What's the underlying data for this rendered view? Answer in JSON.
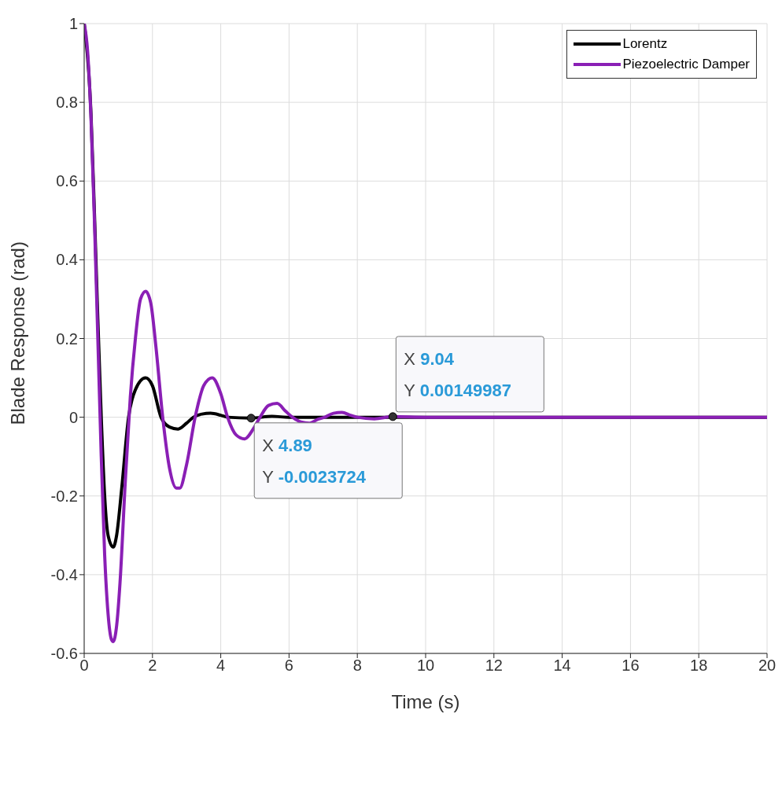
{
  "chart_data": {
    "type": "line",
    "xlabel": "Time (s)",
    "ylabel": "Blade Response (rad)",
    "xlim": [
      0,
      20
    ],
    "xticks": [
      0,
      2,
      4,
      6,
      8,
      10,
      12,
      14,
      16,
      18,
      20
    ],
    "ylim": [
      -0.6,
      1
    ],
    "yticks": [
      -0.6,
      -0.4,
      -0.2,
      0,
      0.2,
      0.4,
      0.6,
      0.8,
      1
    ],
    "grid": true,
    "legend": "top right",
    "marker": "none",
    "line_style": "solid",
    "series": [
      {
        "name": "Lorentz",
        "color": "#000000",
        "x": [
          0,
          0.2,
          0.3,
          0.4,
          0.5,
          0.6,
          0.7,
          0.85,
          0.95,
          1.1,
          1.3,
          1.5,
          1.8,
          2.0,
          2.25,
          2.5,
          2.75,
          3.0,
          3.2,
          3.45,
          3.7,
          4.0,
          4.2,
          4.89,
          5.5,
          6,
          20
        ],
        "values": [
          1,
          0.77,
          0.52,
          0.25,
          0.0,
          -0.2,
          -0.3,
          -0.33,
          -0.3,
          -0.18,
          0.0,
          0.07,
          0.1,
          0.08,
          0.0,
          -0.025,
          -0.03,
          -0.015,
          0.0,
          0.008,
          0.01,
          0.005,
          0,
          -0.002,
          0.002,
          0,
          0
        ]
      },
      {
        "name": "Piezoelectric Damper",
        "color": "#8a1fb5",
        "x": [
          0,
          0.1,
          0.2,
          0.3,
          0.4,
          0.5,
          0.6,
          0.7,
          0.8,
          0.85,
          0.95,
          1.05,
          1.2,
          1.35,
          1.5,
          1.65,
          1.8,
          1.95,
          2.1,
          2.3,
          2.5,
          2.7,
          2.8,
          3.0,
          3.25,
          3.5,
          3.75,
          4.0,
          4.2,
          4.45,
          4.7,
          4.95,
          5.15,
          5.4,
          5.65,
          5.9,
          6.1,
          6.35,
          6.6,
          6.85,
          7.05,
          7.3,
          7.55,
          7.8,
          8.0,
          8.5,
          9.04,
          10,
          20
        ],
        "values": [
          1,
          0.93,
          0.76,
          0.5,
          0.2,
          -0.1,
          -0.35,
          -0.5,
          -0.565,
          -0.57,
          -0.53,
          -0.42,
          -0.17,
          0.05,
          0.2,
          0.3,
          0.32,
          0.29,
          0.18,
          0.0,
          -0.13,
          -0.18,
          -0.18,
          -0.12,
          0.0,
          0.08,
          0.1,
          0.06,
          0.0,
          -0.045,
          -0.055,
          -0.03,
          0.0,
          0.03,
          0.035,
          0.015,
          0,
          -0.012,
          -0.015,
          -0.005,
          0,
          0.01,
          0.012,
          0.005,
          0,
          -0.004,
          0.0015,
          0,
          0
        ]
      }
    ],
    "annotations": [
      {
        "text": "X 4.89\nY -0.0023724",
        "x": 4.89,
        "y": -0.0023724
      },
      {
        "text": "X 9.04\nY 0.00149987",
        "x": 9.04,
        "y": 0.00149987
      }
    ]
  }
}
